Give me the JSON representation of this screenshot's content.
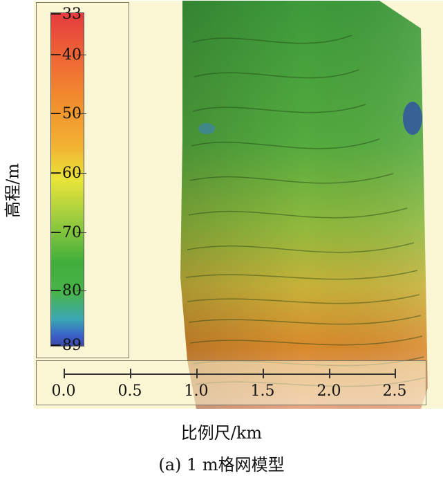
{
  "legend": {
    "title": "高程/m",
    "ticks": [
      "-33",
      "-40",
      "-50",
      "-60",
      "-70",
      "-80",
      "-89"
    ]
  },
  "scale_bar": {
    "label": "比例尺/km",
    "ticks": [
      "0.0",
      "0.5",
      "1.0",
      "1.5",
      "2.0",
      "2.5"
    ]
  },
  "caption": "(a) 1 m格网模型",
  "colors": {
    "background": "#fbf6d3",
    "high": "#e53b3f",
    "mid": "#e9e43a",
    "low_green": "#3fae3a",
    "low": "#3c4aa8"
  }
}
